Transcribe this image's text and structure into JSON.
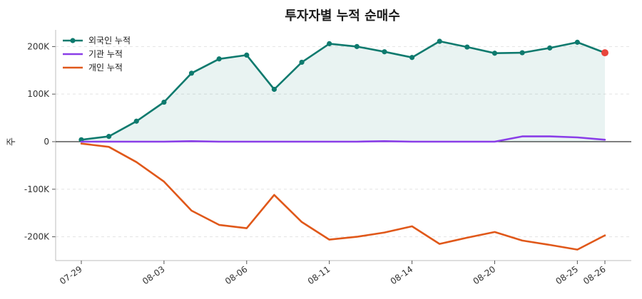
{
  "chart_data": {
    "type": "line",
    "title": "투자자별 누적 순매수",
    "xlabel": "",
    "ylabel": "주",
    "ylim": [
      -250000,
      235000
    ],
    "y_ticks": [
      -200000,
      -100000,
      0,
      100000,
      200000
    ],
    "y_tick_labels": [
      "-200K",
      "-100K",
      "0",
      "100K",
      "200K"
    ],
    "x": [
      "07-29",
      "07-30",
      "07-31",
      "08-03",
      "08-04",
      "08-05",
      "08-06",
      "08-07",
      "08-10",
      "08-11",
      "08-12",
      "08-13",
      "08-14",
      "08-17",
      "08-18",
      "08-20",
      "08-21",
      "08-24",
      "08-25",
      "08-26"
    ],
    "x_tick_labels": [
      "07-29",
      "08-03",
      "08-06",
      "08-11",
      "08-14",
      "08-20",
      "08-25",
      "08-26"
    ],
    "grid": true,
    "legend_position": "top-left",
    "series": [
      {
        "name": "외국인 누적",
        "color": "#0e7a6e",
        "marker": "circle",
        "fill": true,
        "last_point_color": "#e8453c",
        "values": [
          4000,
          11000,
          43000,
          83000,
          144000,
          174000,
          182000,
          110000,
          167000,
          206000,
          200000,
          189000,
          177000,
          211000,
          199000,
          186000,
          187000,
          197000,
          209000,
          187000
        ]
      },
      {
        "name": "기관 누적",
        "color": "#8a3ee8",
        "marker": "none",
        "values": [
          0,
          0,
          0,
          0,
          1000,
          0,
          0,
          0,
          0,
          0,
          0,
          1000,
          0,
          0,
          0,
          0,
          11000,
          11000,
          9000,
          4000
        ]
      },
      {
        "name": "개인 누적",
        "color": "#e0581a",
        "marker": "none",
        "values": [
          -4000,
          -11000,
          -43000,
          -84000,
          -145000,
          -175000,
          -182000,
          -112000,
          -169000,
          -206000,
          -200000,
          -191000,
          -178000,
          -215000,
          -202000,
          -190000,
          -208000,
          -217000,
          -227000,
          -197000
        ]
      }
    ]
  }
}
